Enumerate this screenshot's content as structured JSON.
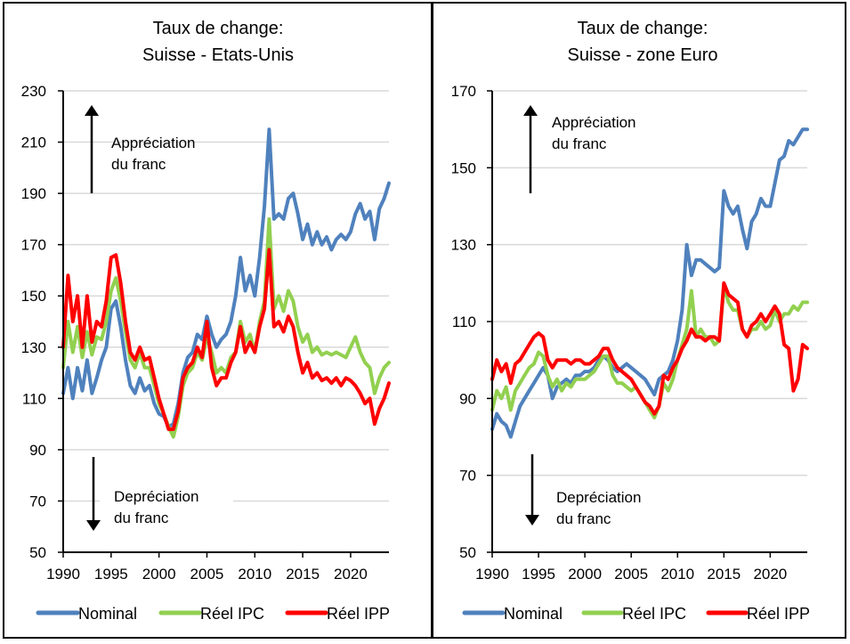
{
  "colors": {
    "nominal": "#4f81bd",
    "ipc": "#92d050",
    "ipp": "#ff0000",
    "grid": "#d9d9d9",
    "axis": "#000000"
  },
  "chart_data": [
    {
      "type": "line",
      "title": [
        "Taux de change:",
        "Suisse - Etats-Unis"
      ],
      "xlabel": "",
      "ylabel": "",
      "xlim": [
        1990,
        2024
      ],
      "ylim": [
        50,
        230
      ],
      "yticks": [
        50,
        70,
        90,
        110,
        130,
        150,
        170,
        190,
        210,
        230
      ],
      "xticks": [
        1990,
        1995,
        2000,
        2005,
        2010,
        2015,
        2020
      ],
      "grid": true,
      "legend": "bottom",
      "annotations": {
        "up": [
          "Appréciation",
          "du franc"
        ],
        "down": [
          "Depréciation",
          "du franc"
        ]
      },
      "x": [
        1990,
        1990.5,
        1991,
        1991.5,
        1992,
        1992.5,
        1993,
        1993.5,
        1994,
        1994.5,
        1995,
        1995.5,
        1996,
        1996.5,
        1997,
        1997.5,
        1998,
        1998.5,
        1999,
        1999.5,
        2000,
        2000.5,
        2001,
        2001.5,
        2002,
        2002.5,
        2003,
        2003.5,
        2004,
        2004.5,
        2005,
        2005.5,
        2006,
        2006.5,
        2007,
        2007.5,
        2008,
        2008.5,
        2009,
        2009.5,
        2010,
        2010.5,
        2011,
        2011.5,
        2012,
        2012.5,
        2013,
        2013.5,
        2014,
        2014.5,
        2015,
        2015.5,
        2016,
        2016.5,
        2017,
        2017.5,
        2018,
        2018.5,
        2019,
        2019.5,
        2020,
        2020.5,
        2021,
        2021.5,
        2022,
        2022.5,
        2023,
        2023.5,
        2024
      ],
      "series": [
        {
          "name": "Nominal",
          "key": "nominal",
          "values": [
            112,
            122,
            110,
            122,
            113,
            125,
            112,
            118,
            125,
            130,
            145,
            148,
            138,
            125,
            115,
            112,
            118,
            113,
            115,
            108,
            104,
            103,
            99,
            100,
            108,
            120,
            126,
            128,
            135,
            133,
            142,
            135,
            130,
            133,
            135,
            140,
            150,
            165,
            152,
            158,
            150,
            165,
            185,
            215,
            180,
            182,
            180,
            188,
            190,
            182,
            172,
            178,
            170,
            175,
            170,
            173,
            168,
            172,
            174,
            172,
            175,
            182,
            186,
            180,
            183,
            172,
            184,
            188,
            194
          ]
        },
        {
          "name": "Réel IPC",
          "key": "ipc",
          "values": [
            122,
            140,
            128,
            138,
            126,
            136,
            127,
            134,
            133,
            140,
            152,
            157,
            148,
            136,
            125,
            122,
            128,
            122,
            122,
            115,
            108,
            104,
            99,
            95,
            103,
            115,
            120,
            122,
            128,
            125,
            134,
            128,
            120,
            122,
            120,
            126,
            128,
            140,
            132,
            135,
            128,
            140,
            148,
            180,
            145,
            150,
            144,
            152,
            148,
            138,
            132,
            135,
            128,
            130,
            127,
            128,
            127,
            128,
            127,
            126,
            130,
            134,
            128,
            124,
            122,
            112,
            118,
            122,
            124
          ]
        },
        {
          "name": "Réel IPP",
          "key": "ipp",
          "values": [
            130,
            158,
            140,
            150,
            130,
            150,
            132,
            140,
            138,
            148,
            165,
            166,
            155,
            140,
            128,
            125,
            130,
            125,
            126,
            118,
            110,
            104,
            98,
            98,
            105,
            118,
            122,
            124,
            130,
            126,
            140,
            122,
            115,
            118,
            118,
            124,
            128,
            138,
            128,
            132,
            128,
            138,
            145,
            168,
            138,
            140,
            136,
            142,
            138,
            128,
            120,
            124,
            118,
            120,
            117,
            118,
            116,
            118,
            115,
            118,
            117,
            115,
            112,
            108,
            110,
            100,
            106,
            110,
            116
          ]
        }
      ]
    },
    {
      "type": "line",
      "title": [
        "Taux de change:",
        "Suisse - zone Euro"
      ],
      "xlabel": "",
      "ylabel": "",
      "xlim": [
        1990,
        2024
      ],
      "ylim": [
        50,
        170
      ],
      "yticks": [
        50,
        70,
        90,
        110,
        130,
        150,
        170
      ],
      "xticks": [
        1990,
        1995,
        2000,
        2005,
        2010,
        2015,
        2020
      ],
      "grid": true,
      "legend": "bottom",
      "annotations": {
        "up": [
          "Appréciation",
          "du franc"
        ],
        "down": [
          "Depréciation",
          "du franc"
        ]
      },
      "x": [
        1990,
        1990.5,
        1991,
        1991.5,
        1992,
        1992.5,
        1993,
        1993.5,
        1994,
        1994.5,
        1995,
        1995.5,
        1996,
        1996.5,
        1997,
        1997.5,
        1998,
        1998.5,
        1999,
        1999.5,
        2000,
        2000.5,
        2001,
        2001.5,
        2002,
        2002.5,
        2003,
        2003.5,
        2004,
        2004.5,
        2005,
        2005.5,
        2006,
        2006.5,
        2007,
        2007.5,
        2008,
        2008.5,
        2009,
        2009.5,
        2010,
        2010.5,
        2011,
        2011.5,
        2012,
        2012.5,
        2013,
        2013.5,
        2014,
        2014.5,
        2015,
        2015.5,
        2016,
        2016.5,
        2017,
        2017.5,
        2018,
        2018.5,
        2019,
        2019.5,
        2020,
        2020.5,
        2021,
        2021.5,
        2022,
        2022.5,
        2023,
        2023.5,
        2024
      ],
      "series": [
        {
          "name": "Nominal",
          "key": "nominal",
          "values": [
            82,
            86,
            84,
            83,
            80,
            84,
            88,
            90,
            92,
            94,
            96,
            98,
            96,
            90,
            93,
            94,
            95,
            94,
            96,
            96,
            97,
            97,
            98,
            100,
            101,
            100,
            98,
            97,
            98,
            99,
            98,
            97,
            96,
            95,
            93,
            91,
            95,
            96,
            97,
            100,
            105,
            113,
            130,
            122,
            126,
            126,
            125,
            124,
            123,
            124,
            144,
            140,
            138,
            140,
            134,
            129,
            136,
            138,
            142,
            140,
            140,
            146,
            152,
            153,
            157,
            156,
            158,
            160,
            160
          ]
        },
        {
          "name": "Réel IPC",
          "key": "ipc",
          "values": [
            87,
            92,
            90,
            93,
            87,
            92,
            94,
            96,
            98,
            99,
            102,
            101,
            96,
            93,
            95,
            92,
            94,
            93,
            95,
            95,
            95,
            96,
            97,
            99,
            101,
            101,
            96,
            94,
            94,
            93,
            92,
            93,
            91,
            89,
            87,
            85,
            88,
            94,
            92,
            95,
            100,
            104,
            108,
            118,
            106,
            108,
            106,
            106,
            104,
            105,
            119,
            115,
            113,
            113,
            108,
            106,
            108,
            108,
            110,
            108,
            109,
            113,
            110,
            112,
            112,
            114,
            113,
            115,
            115
          ]
        },
        {
          "name": "Réel IPP",
          "key": "ipp",
          "values": [
            95,
            100,
            97,
            99,
            94,
            99,
            100,
            102,
            104,
            106,
            107,
            106,
            100,
            98,
            100,
            100,
            100,
            99,
            100,
            100,
            99,
            99,
            100,
            101,
            103,
            103,
            100,
            98,
            97,
            96,
            95,
            93,
            91,
            89,
            88,
            86,
            88,
            96,
            95,
            98,
            100,
            103,
            105,
            108,
            106,
            106,
            105,
            106,
            106,
            105,
            120,
            117,
            116,
            115,
            108,
            106,
            109,
            110,
            112,
            110,
            112,
            114,
            112,
            104,
            103,
            92,
            95,
            104,
            103
          ]
        }
      ]
    }
  ],
  "legend": {
    "items": [
      "Nominal",
      "Réel IPC",
      "Réel IPP"
    ]
  }
}
